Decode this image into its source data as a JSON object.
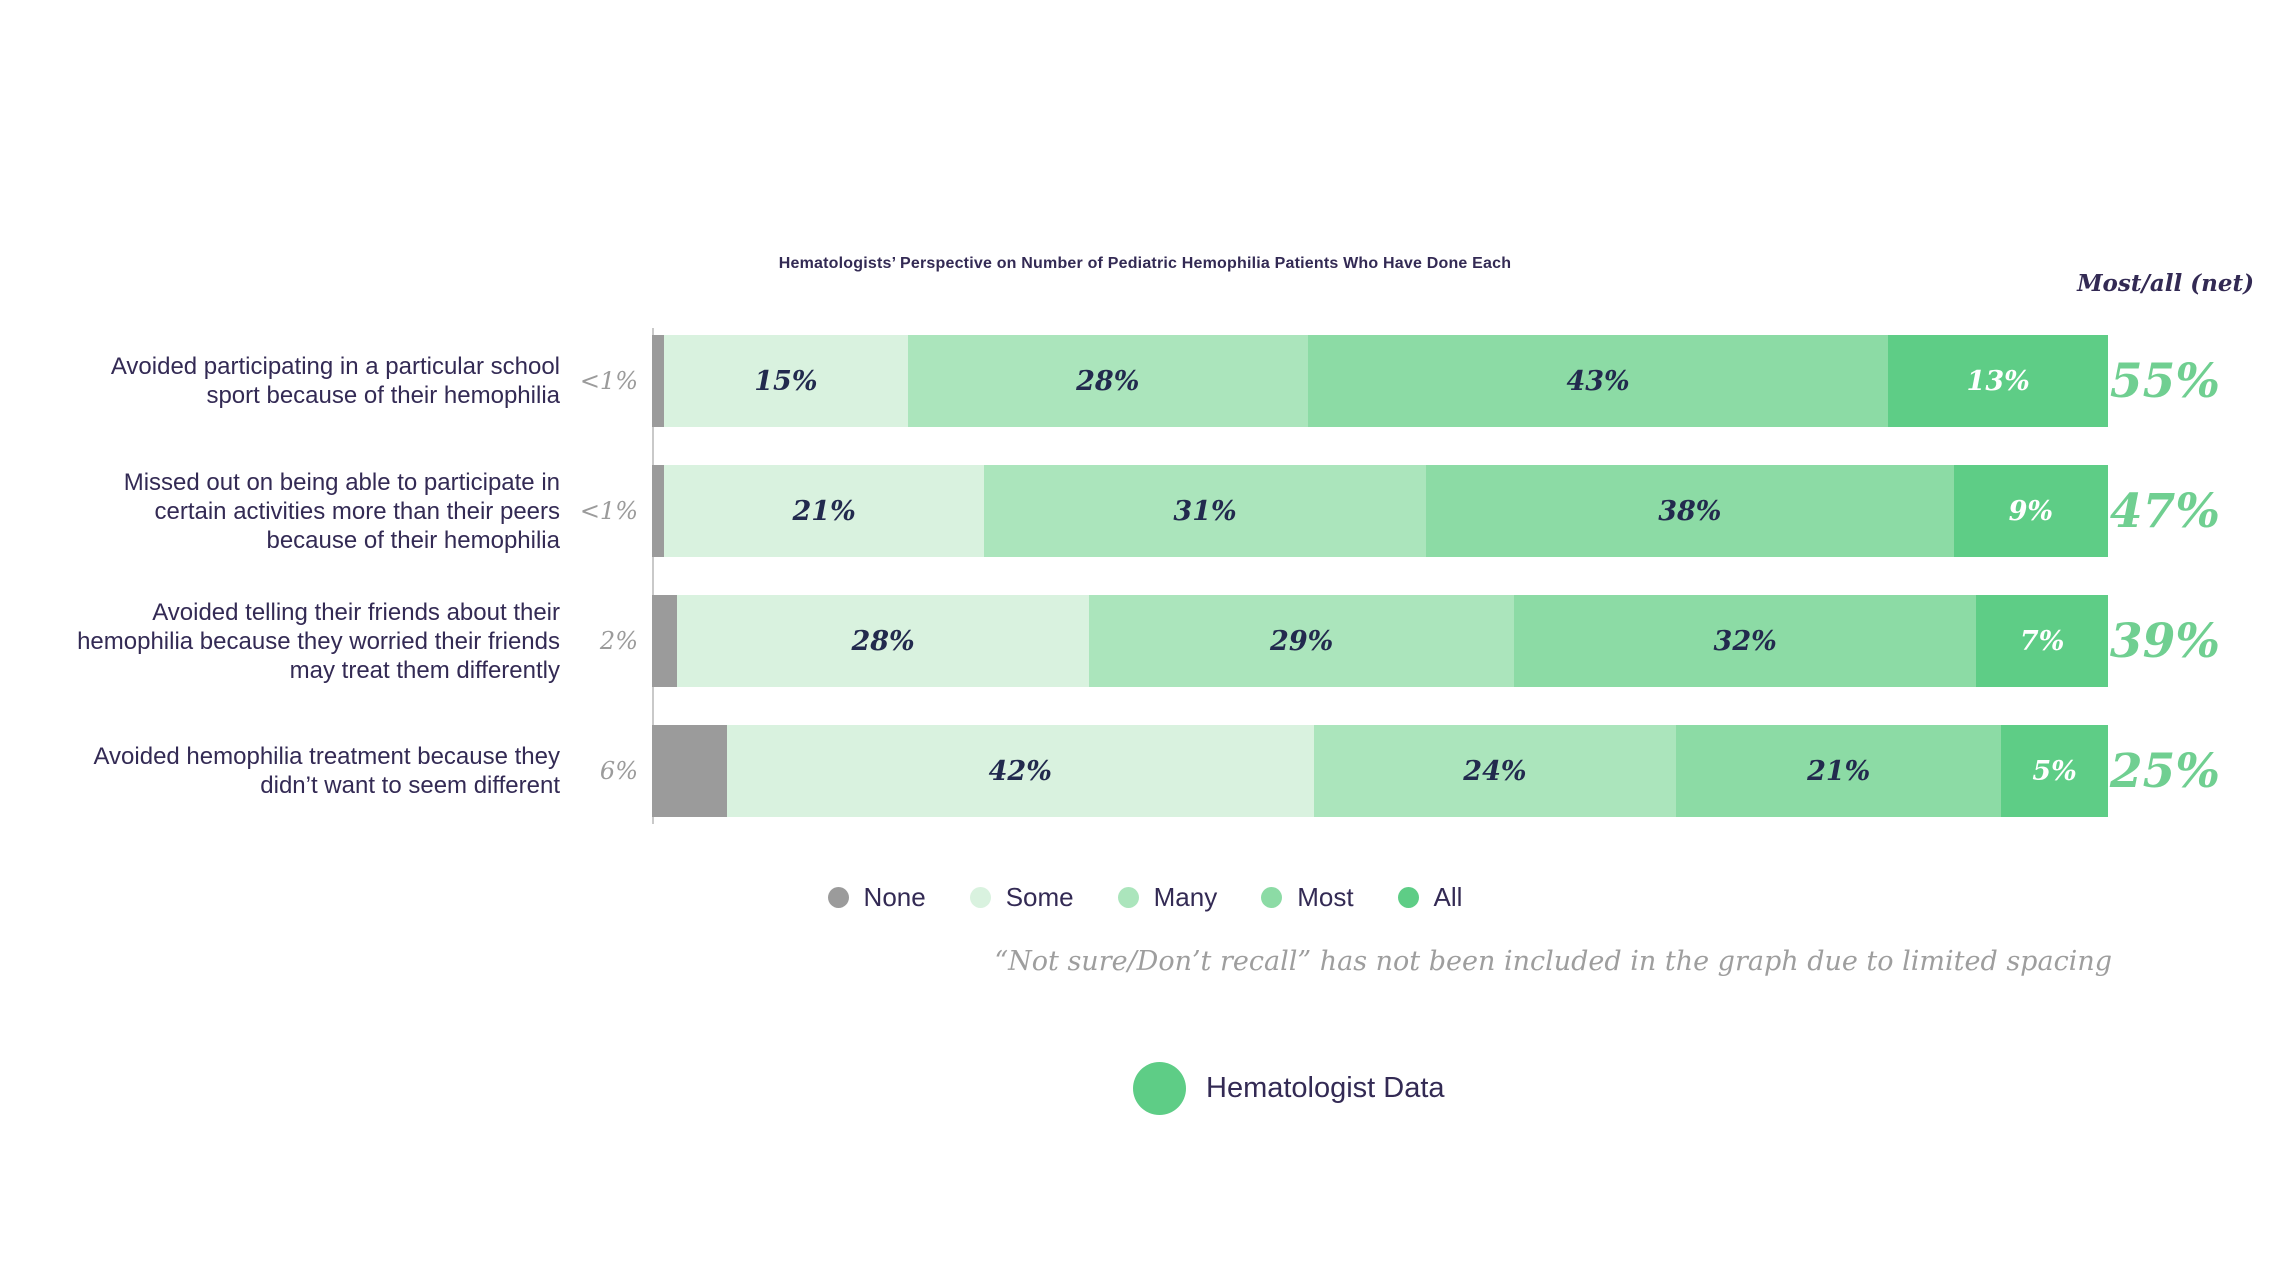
{
  "title": "Hematologists’ Perspective on Number of Pediatric Hemophilia Patients Who Have Done Each",
  "net_header": "Most/all (net)",
  "footnote": "“Not sure/Don’t recall” has not been included in the graph due to limited spacing",
  "source_legend": {
    "label": "Hematologist Data",
    "color": "#5ecd86"
  },
  "colors": {
    "none": "#9b9b9b",
    "some": "#d9f2df",
    "many": "#abe5bc",
    "most": "#8cdba5",
    "all": "#5ecd86",
    "net_text": "#70cf91",
    "title_text": "#332a54",
    "muted_text": "#9e9e9e",
    "axis_line": "#c9c9c9"
  },
  "chart_data": {
    "type": "bar",
    "orientation": "horizontal",
    "stacked": true,
    "grid": false,
    "legend_position": "bottom",
    "legend": [
      {
        "label": "None",
        "color": "#9b9b9b"
      },
      {
        "label": "Some",
        "color": "#d9f2df"
      },
      {
        "label": "Many",
        "color": "#abe5bc"
      },
      {
        "label": "Most",
        "color": "#8cdba5"
      },
      {
        "label": "All",
        "color": "#5ecd86"
      }
    ],
    "categories": [
      "Avoided participating in a particular school sport because of their hemophilia",
      "Missed out on being able to participate in certain activities more than their peers because of their hemophilia",
      "Avoided telling their friends about their hemophilia because they worried their friends may treat them differently",
      "Avoided hemophilia treatment because they didn’t want to seem different"
    ],
    "series": [
      {
        "name": "None",
        "labels": [
          "<1%",
          "<1%",
          "2%",
          "6%"
        ],
        "values": [
          1,
          1,
          2,
          6
        ]
      },
      {
        "name": "Some",
        "values": [
          15,
          21,
          28,
          42
        ]
      },
      {
        "name": "Many",
        "values": [
          28,
          31,
          29,
          24
        ]
      },
      {
        "name": "Most",
        "values": [
          43,
          38,
          32,
          21
        ]
      },
      {
        "name": "All",
        "values": [
          13,
          9,
          7,
          5
        ]
      }
    ],
    "net_values": [
      "55%",
      "47%",
      "39%",
      "25%"
    ],
    "rows": [
      {
        "label": "Avoided participating in a particular school sport because of their hemophilia",
        "none": {
          "label": "<1%",
          "width": 1
        },
        "segments": [
          {
            "series": "Some",
            "value": 15,
            "label": "15%"
          },
          {
            "series": "Many",
            "value": 28,
            "label": "28%"
          },
          {
            "series": "Most",
            "value": 43,
            "label": "43%"
          },
          {
            "series": "All",
            "value": 13,
            "label": "13%"
          }
        ],
        "net": "55%"
      },
      {
        "label": "Missed out on being able to participate in certain activities more than their peers because of their hemophilia",
        "none": {
          "label": "<1%",
          "width": 1
        },
        "segments": [
          {
            "series": "Some",
            "value": 21,
            "label": "21%"
          },
          {
            "series": "Many",
            "value": 31,
            "label": "31%"
          },
          {
            "series": "Most",
            "value": 38,
            "label": "38%"
          },
          {
            "series": "All",
            "value": 9,
            "label": "9%"
          }
        ],
        "net": "47%"
      },
      {
        "label": "Avoided telling their friends about their hemophilia because they worried their friends may treat them differently",
        "none": {
          "label": "2%",
          "width": 2
        },
        "segments": [
          {
            "series": "Some",
            "value": 28,
            "label": "28%"
          },
          {
            "series": "Many",
            "value": 29,
            "label": "29%"
          },
          {
            "series": "Most",
            "value": 32,
            "label": "32%"
          },
          {
            "series": "All",
            "value": 7,
            "label": "7%"
          }
        ],
        "net": "39%"
      },
      {
        "label": "Avoided hemophilia treatment because they didn’t want to seem different",
        "none": {
          "label": "6%",
          "width": 6
        },
        "segments": [
          {
            "series": "Some",
            "value": 42,
            "label": "42%"
          },
          {
            "series": "Many",
            "value": 24,
            "label": "24%"
          },
          {
            "series": "Most",
            "value": 21,
            "label": "21%"
          },
          {
            "series": "All",
            "value": 5,
            "label": "5%"
          }
        ],
        "net": "25%"
      }
    ]
  }
}
